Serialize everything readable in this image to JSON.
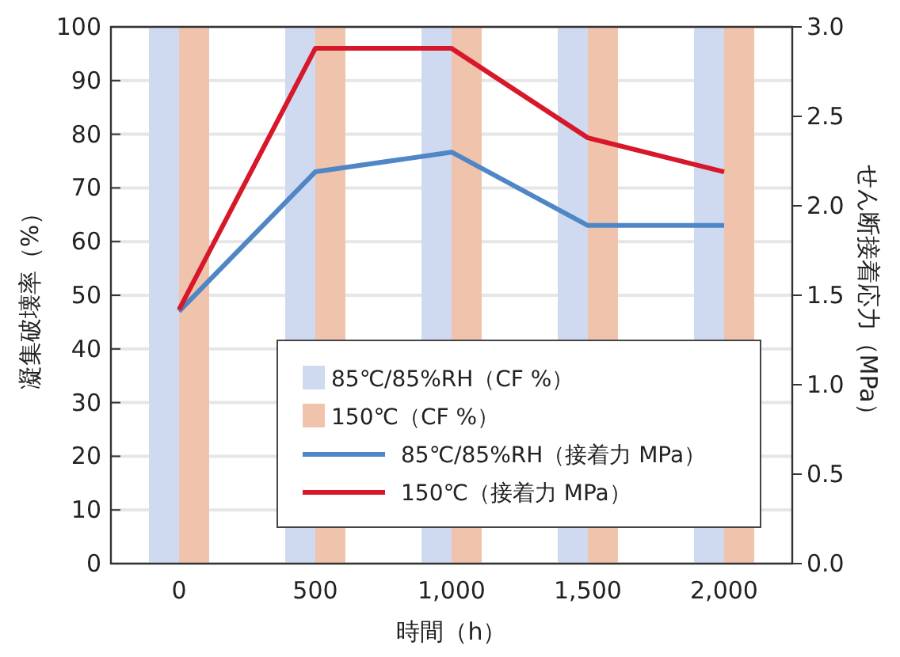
{
  "chart_data": {
    "type": "bar",
    "xlabel": "時間（h）",
    "ylabel": "凝集破壊率（%）",
    "y2label": "せん断接着応力（MPa）",
    "categories": [
      "0",
      "500",
      "1,000",
      "1,500",
      "2,000"
    ],
    "series": [
      {
        "name": "85℃/85%RH（CF %）",
        "color": "#cfd9f0",
        "values": [
          100,
          100,
          100,
          100,
          100
        ]
      },
      {
        "name": "150℃（CF %）",
        "color": "#f0c3ad",
        "values": [
          100,
          100,
          100,
          100,
          100
        ]
      },
      {
        "name": "85℃/85%RH（接着力 MPa）",
        "type": "line",
        "axis": "y2",
        "color": "#4f86c6",
        "values": [
          1.41,
          2.19,
          2.3,
          1.89,
          1.89
        ]
      },
      {
        "name": "150℃（接着力 MPa）",
        "type": "line",
        "axis": "y2",
        "color": "#d7182a",
        "values": [
          1.42,
          2.88,
          2.88,
          2.38,
          2.19
        ]
      }
    ],
    "ylim": [
      0,
      100
    ],
    "yticks": [
      0,
      10,
      20,
      30,
      40,
      50,
      60,
      70,
      80,
      90,
      100
    ],
    "y2lim": [
      0,
      3
    ],
    "y2ticks": [
      {
        "value": 0,
        "label": "0.0"
      },
      {
        "value": 0.5,
        "label": "0.5"
      },
      {
        "value": 1,
        "label": "1.0"
      },
      {
        "value": 1.5,
        "label": "1.5"
      },
      {
        "value": 2,
        "label": "2.0"
      },
      {
        "value": 2.5,
        "label": "2.5"
      },
      {
        "value": 3,
        "label": "3.0"
      }
    ],
    "grid": "y",
    "legend": "bottom right"
  }
}
